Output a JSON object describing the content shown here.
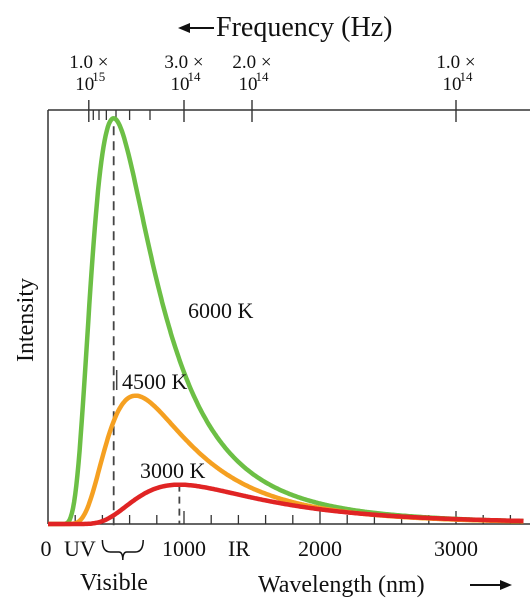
{
  "chart_data": {
    "type": "line",
    "title": "",
    "xlabel": "Wavelength (nm)",
    "ylabel": "Intensity",
    "x2label": "Frequency (Hz)",
    "xlim": [
      0,
      3500
    ],
    "ylim": [
      0,
      1
    ],
    "grid": false,
    "legend": "none",
    "x_ticks": [
      {
        "value": 0,
        "label": "0"
      },
      {
        "value": 1000,
        "label": "1000"
      },
      {
        "value": 2000,
        "label": "2000"
      },
      {
        "value": 3000,
        "label": "3000"
      }
    ],
    "x_minor_step": 200,
    "freq_ticks": [
      {
        "wavelength": 300,
        "mantissa": "1.0 ×",
        "exp": "10",
        "pow": "15"
      },
      {
        "wavelength": 1000,
        "mantissa": "3.0 ×",
        "exp": "10",
        "pow": "14"
      },
      {
        "wavelength": 1500,
        "mantissa": "2.0 ×",
        "exp": "10",
        "pow": "14"
      },
      {
        "wavelength": 3000,
        "mantissa": "1.0 ×",
        "exp": "10",
        "pow": "14"
      }
    ],
    "freq_minor_wavelengths": [
      333,
      375,
      429,
      500,
      600,
      750
    ],
    "series": [
      {
        "name": "6000 K",
        "color": "#6cbf45",
        "temperature": 6000,
        "peak_nm": 483,
        "peak_intensity": 0.98
      },
      {
        "name": "4500 K",
        "color": "#f5a021",
        "temperature": 4500,
        "peak_nm": 644,
        "peak_intensity": 0.31
      },
      {
        "name": "3000 K",
        "color": "#e02424",
        "temperature": 3000,
        "peak_nm": 966,
        "peak_intensity": 0.095
      }
    ],
    "annotations": {
      "uv": "UV",
      "ir": "IR",
      "visible": "Visible",
      "visible_range_nm": [
        400,
        700
      ]
    }
  }
}
